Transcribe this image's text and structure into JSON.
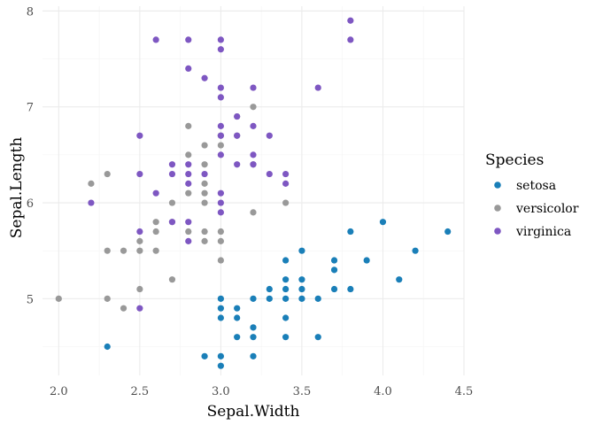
{
  "chart_data": {
    "type": "scatter",
    "xlabel": "Sepal.Width",
    "ylabel": "Sepal.Length",
    "xlim": [
      1.9,
      4.5
    ],
    "ylim": [
      4.2,
      8.05
    ],
    "x_ticks": [
      "2.0",
      "2.5",
      "3.0",
      "3.5",
      "4.0",
      "4.5"
    ],
    "y_ticks": [
      "5",
      "6",
      "7",
      "8"
    ],
    "grid": true,
    "legend": {
      "title": "Species",
      "position": "right"
    },
    "series": [
      {
        "name": "setosa",
        "color": "#1a7fb8",
        "points": [
          [
            2.3,
            4.5
          ],
          [
            2.9,
            4.4
          ],
          [
            3.0,
            4.4
          ],
          [
            3.0,
            4.3
          ],
          [
            3.2,
            4.4
          ],
          [
            3.0,
            4.8
          ],
          [
            3.0,
            4.9
          ],
          [
            3.0,
            5.0
          ],
          [
            3.1,
            4.6
          ],
          [
            3.1,
            4.8
          ],
          [
            3.1,
            4.9
          ],
          [
            3.2,
            4.6
          ],
          [
            3.2,
            4.7
          ],
          [
            3.2,
            5.0
          ],
          [
            3.3,
            5.0
          ],
          [
            3.3,
            5.1
          ],
          [
            3.4,
            4.6
          ],
          [
            3.4,
            4.8
          ],
          [
            3.4,
            5.0
          ],
          [
            3.4,
            5.1
          ],
          [
            3.4,
            5.2
          ],
          [
            3.4,
            5.4
          ],
          [
            3.5,
            5.0
          ],
          [
            3.5,
            5.1
          ],
          [
            3.5,
            5.2
          ],
          [
            3.5,
            5.5
          ],
          [
            3.6,
            4.6
          ],
          [
            3.6,
            5.0
          ],
          [
            3.7,
            5.1
          ],
          [
            3.7,
            5.3
          ],
          [
            3.7,
            5.4
          ],
          [
            3.8,
            5.1
          ],
          [
            3.8,
            5.7
          ],
          [
            3.9,
            5.4
          ],
          [
            4.0,
            5.8
          ],
          [
            4.1,
            5.2
          ],
          [
            4.2,
            5.5
          ],
          [
            4.4,
            5.7
          ]
        ]
      },
      {
        "name": "versicolor",
        "color": "#999999",
        "points": [
          [
            2.0,
            5.0
          ],
          [
            2.2,
            6.2
          ],
          [
            2.3,
            5.0
          ],
          [
            2.3,
            5.5
          ],
          [
            2.3,
            6.3
          ],
          [
            2.4,
            4.9
          ],
          [
            2.4,
            5.5
          ],
          [
            2.5,
            5.1
          ],
          [
            2.5,
            5.5
          ],
          [
            2.5,
            5.6
          ],
          [
            2.6,
            5.5
          ],
          [
            2.6,
            5.7
          ],
          [
            2.6,
            5.8
          ],
          [
            2.7,
            5.2
          ],
          [
            2.7,
            5.8
          ],
          [
            2.7,
            6.0
          ],
          [
            2.8,
            5.7
          ],
          [
            2.8,
            6.1
          ],
          [
            2.8,
            6.5
          ],
          [
            2.8,
            6.8
          ],
          [
            2.9,
            5.6
          ],
          [
            2.9,
            5.7
          ],
          [
            2.9,
            6.0
          ],
          [
            2.9,
            6.1
          ],
          [
            2.9,
            6.2
          ],
          [
            2.9,
            6.4
          ],
          [
            2.9,
            6.6
          ],
          [
            3.0,
            5.4
          ],
          [
            3.0,
            5.6
          ],
          [
            3.0,
            5.7
          ],
          [
            3.0,
            6.6
          ],
          [
            3.0,
            6.7
          ],
          [
            3.1,
            6.7
          ],
          [
            3.1,
            6.9
          ],
          [
            3.2,
            5.9
          ],
          [
            3.2,
            6.4
          ],
          [
            3.2,
            7.0
          ],
          [
            3.4,
            6.0
          ]
        ]
      },
      {
        "name": "virginica",
        "color": "#7e57c2",
        "points": [
          [
            2.2,
            6.0
          ],
          [
            2.5,
            4.9
          ],
          [
            2.5,
            5.7
          ],
          [
            2.5,
            6.3
          ],
          [
            2.5,
            6.7
          ],
          [
            2.6,
            6.1
          ],
          [
            2.6,
            7.7
          ],
          [
            2.7,
            5.8
          ],
          [
            2.7,
            6.3
          ],
          [
            2.7,
            6.4
          ],
          [
            2.8,
            5.6
          ],
          [
            2.8,
            5.8
          ],
          [
            2.8,
            6.2
          ],
          [
            2.8,
            6.3
          ],
          [
            2.8,
            6.4
          ],
          [
            2.8,
            7.4
          ],
          [
            2.8,
            7.7
          ],
          [
            2.9,
            6.3
          ],
          [
            2.9,
            7.3
          ],
          [
            3.0,
            5.9
          ],
          [
            3.0,
            6.0
          ],
          [
            3.0,
            6.1
          ],
          [
            3.0,
            6.5
          ],
          [
            3.0,
            6.7
          ],
          [
            3.0,
            6.8
          ],
          [
            3.0,
            7.1
          ],
          [
            3.0,
            7.2
          ],
          [
            3.0,
            7.6
          ],
          [
            3.0,
            7.7
          ],
          [
            3.1,
            6.4
          ],
          [
            3.1,
            6.7
          ],
          [
            3.1,
            6.9
          ],
          [
            3.2,
            6.4
          ],
          [
            3.2,
            6.5
          ],
          [
            3.2,
            6.8
          ],
          [
            3.2,
            7.2
          ],
          [
            3.3,
            6.3
          ],
          [
            3.3,
            6.7
          ],
          [
            3.4,
            6.2
          ],
          [
            3.4,
            6.3
          ],
          [
            3.6,
            7.2
          ],
          [
            3.8,
            7.7
          ],
          [
            3.8,
            7.9
          ]
        ]
      }
    ]
  }
}
